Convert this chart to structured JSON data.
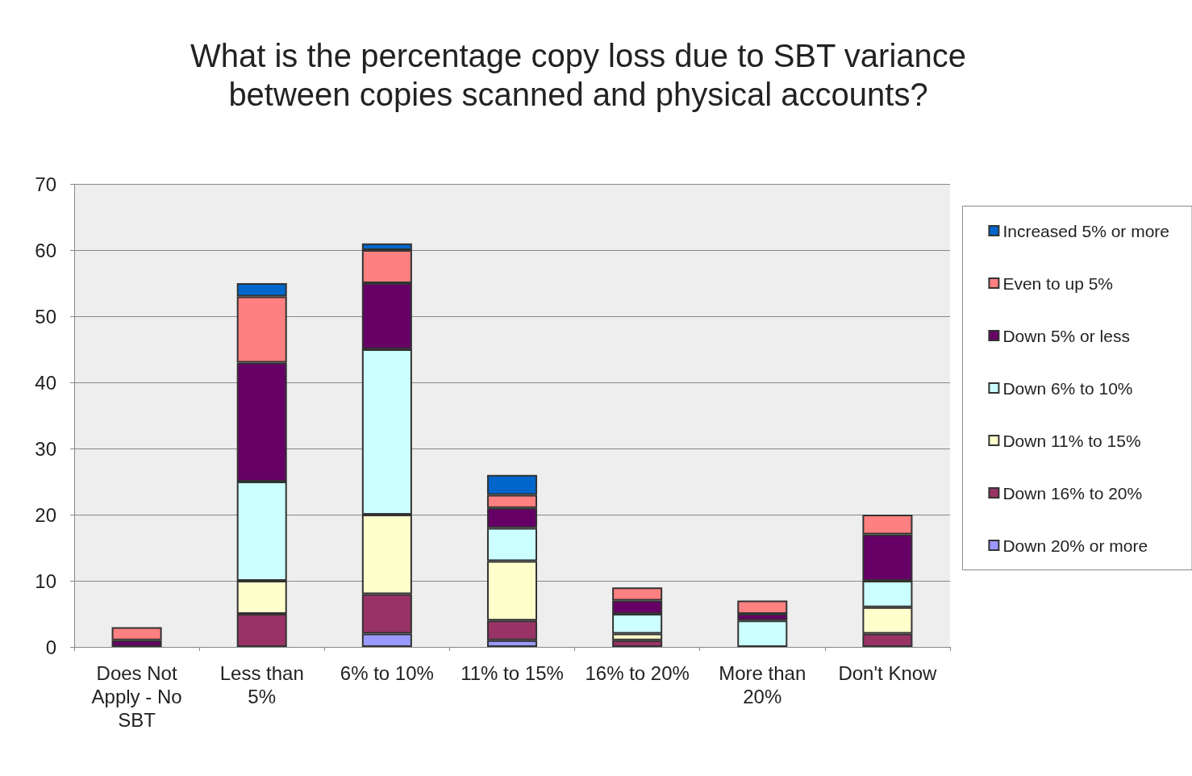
{
  "chart_data": {
    "type": "bar",
    "title": "What is the percentage copy loss due to SBT variance\nbetween copies scanned and physical accounts?",
    "categories": [
      "Does Not\nApply - No\nSBT",
      "Less than\n5%",
      "6% to 10%",
      "11% to 15%",
      "16% to 20%",
      "More than\n20%",
      "Don't Know"
    ],
    "stacked": true,
    "ylim": [
      0,
      70
    ],
    "yticks": [
      0,
      10,
      20,
      30,
      40,
      50,
      60,
      70
    ],
    "grid": "y",
    "legend": "right",
    "series": [
      {
        "name": "Down 20% or more",
        "color": "#9999ff",
        "values": [
          null,
          null,
          2,
          1,
          null,
          null,
          null
        ]
      },
      {
        "name": "Down 16% to 20%",
        "color": "#993366",
        "values": [
          null,
          5,
          6,
          3,
          1,
          null,
          2
        ]
      },
      {
        "name": "Down 11% to 15%",
        "color": "#ffffcc",
        "values": [
          null,
          5,
          12,
          9,
          1,
          null,
          4
        ]
      },
      {
        "name": "Down 6% to 10%",
        "color": "#ccffff",
        "values": [
          null,
          15,
          25,
          5,
          3,
          4,
          4
        ]
      },
      {
        "name": "Down 5% or less",
        "color": "#660066",
        "values": [
          1,
          18,
          10,
          3,
          2,
          1,
          7
        ]
      },
      {
        "name": "Even to up 5%",
        "color": "#ff8080",
        "values": [
          2,
          10,
          5,
          2,
          2,
          2,
          3
        ]
      },
      {
        "name": "Increased 5% or more",
        "color": "#0066cc",
        "values": [
          null,
          2,
          1,
          3,
          null,
          null,
          null
        ]
      }
    ]
  }
}
